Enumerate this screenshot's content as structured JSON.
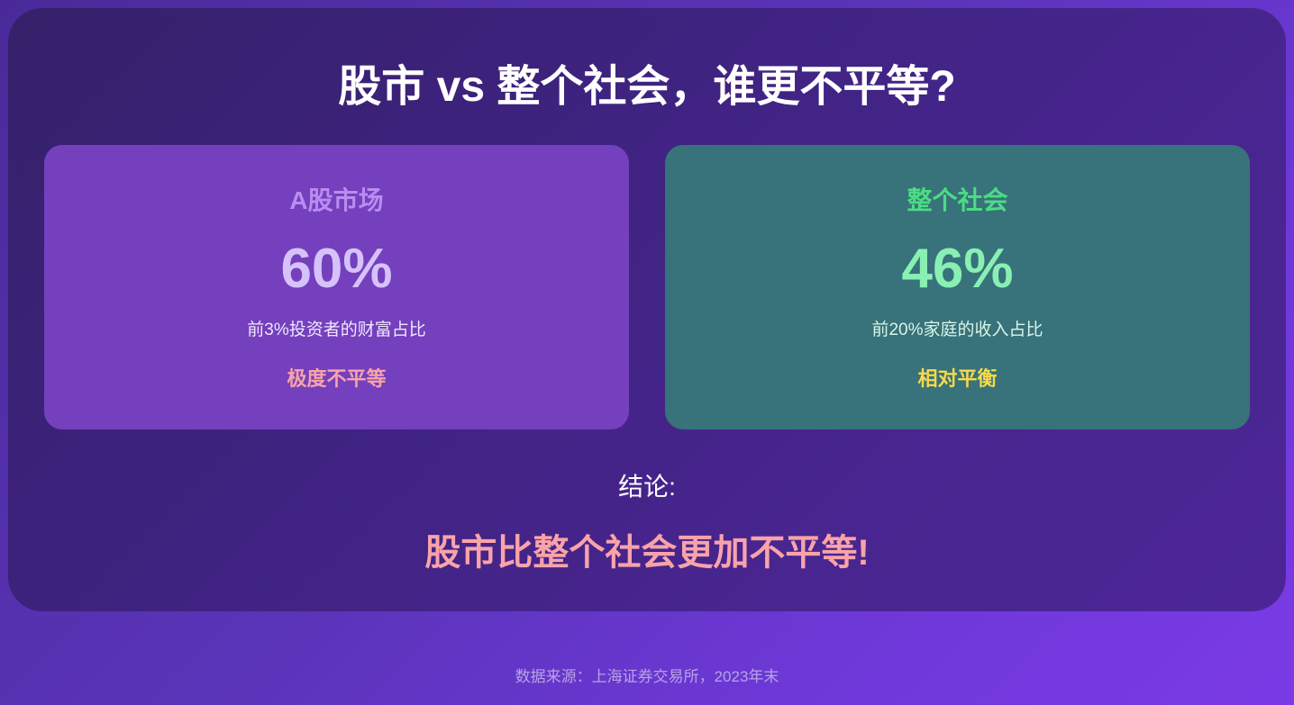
{
  "title": "股市 vs 整个社会，谁更不平等?",
  "cards": [
    {
      "name": "A股市场",
      "value": "60%",
      "description": "前3%投资者的财富占比",
      "verdict": "极度不平等"
    },
    {
      "name": "整个社会",
      "value": "46%",
      "description": "前20%家庭的收入占比",
      "verdict": "相对平衡"
    }
  ],
  "conclusion": {
    "label": "结论:",
    "text": "股市比整个社会更加不平等!"
  },
  "footer": "数据来源：上海证券交易所，2023年末",
  "colors": {
    "background_start": "#4a2a9a",
    "background_end": "#7b3ae6",
    "panel": "#3f2381",
    "card_stock": "#7440bd",
    "card_society": "#38727a",
    "accent_pink": "#f9a3a9",
    "accent_green": "#4bdc85",
    "accent_yellow": "#f8d94a"
  }
}
